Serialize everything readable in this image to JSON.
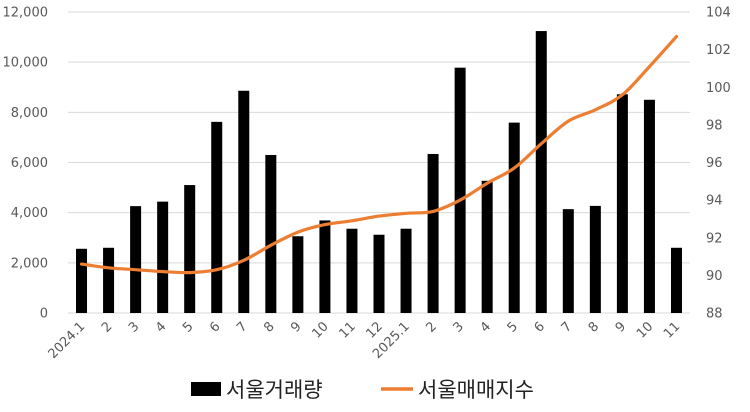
{
  "chart_data": {
    "type": "bar",
    "categories": [
      "2024.1",
      "2",
      "3",
      "4",
      "5",
      "6",
      "7",
      "8",
      "9",
      "10",
      "11",
      "12",
      "2025.1",
      "2",
      "3",
      "4",
      "5",
      "6",
      "7",
      "8",
      "9",
      "10",
      "11"
    ],
    "series": [
      {
        "name": "서울거래량",
        "type": "bar",
        "axis": "left",
        "color": "#000000",
        "values": [
          2560,
          2600,
          4260,
          4440,
          5100,
          7620,
          8860,
          6300,
          3060,
          3690,
          3360,
          3120,
          3360,
          6340,
          9780,
          5270,
          7590,
          11240,
          4140,
          4270,
          8720,
          8500,
          2600
        ]
      },
      {
        "name": "서울매매지수",
        "type": "line",
        "axis": "right",
        "color": "#ED7D31",
        "values": [
          90.6,
          90.4,
          90.3,
          90.2,
          90.15,
          90.3,
          90.8,
          91.6,
          92.3,
          92.7,
          92.9,
          93.15,
          93.3,
          93.4,
          94.0,
          94.9,
          95.7,
          97.0,
          98.2,
          98.8,
          99.6,
          101.1,
          102.7
        ]
      }
    ],
    "ylim": [
      0,
      12000
    ],
    "y_ticks": [
      "0",
      "2,000",
      "4,000",
      "6,000",
      "8,000",
      "10,000",
      "12,000"
    ],
    "y2lim": [
      88,
      104
    ],
    "y2_ticks": [
      "88",
      "90",
      "92",
      "94",
      "96",
      "98",
      "100",
      "102",
      "104"
    ],
    "grid": true,
    "legend_position": "bottom"
  }
}
